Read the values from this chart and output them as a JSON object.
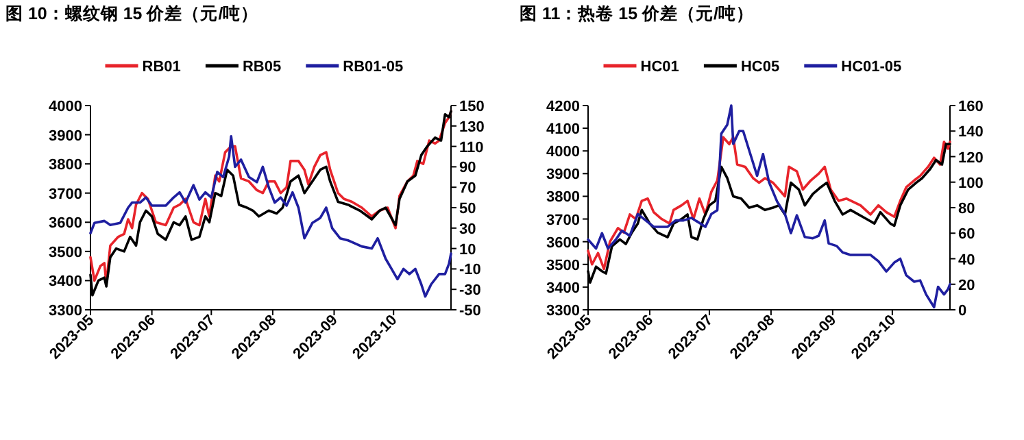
{
  "chart_data": [
    {
      "type": "line",
      "title": "图 10：螺纹钢 15 价差（元/吨）",
      "legend": "top",
      "grid": false,
      "xlim": [
        "2023-05-01",
        "2023-10-30"
      ],
      "xticks": [
        "2023-05",
        "2023-06",
        "2023-07",
        "2023-08",
        "2023-09",
        "2023-10"
      ],
      "ylim": [
        3300,
        4000
      ],
      "yticks": [
        3300,
        3400,
        3500,
        3600,
        3700,
        3800,
        3900,
        4000
      ],
      "y2lim": [
        -50,
        150
      ],
      "y2ticks": [
        -50,
        -30,
        -10,
        10,
        30,
        50,
        70,
        90,
        110,
        130,
        150
      ],
      "series": [
        {
          "name": "RB01",
          "color": "#e8242b",
          "x": [
            "2023-05-01",
            "2023-05-03",
            "2023-05-06",
            "2023-05-08",
            "2023-05-09",
            "2023-05-11",
            "2023-05-15",
            "2023-05-18",
            "2023-05-20",
            "2023-05-22",
            "2023-05-24",
            "2023-05-27",
            "2023-05-30",
            "2023-06-03",
            "2023-06-08",
            "2023-06-12",
            "2023-06-15",
            "2023-06-18",
            "2023-06-22",
            "2023-06-25",
            "2023-06-28",
            "2023-06-30",
            "2023-07-03",
            "2023-07-05",
            "2023-07-08",
            "2023-07-11",
            "2023-07-13",
            "2023-07-16",
            "2023-07-20",
            "2023-07-24",
            "2023-07-27",
            "2023-07-30",
            "2023-08-02",
            "2023-08-05",
            "2023-08-08",
            "2023-08-10",
            "2023-08-14",
            "2023-08-17",
            "2023-08-19",
            "2023-08-22",
            "2023-08-25",
            "2023-08-28",
            "2023-08-30",
            "2023-09-03",
            "2023-09-06",
            "2023-09-10",
            "2023-09-15",
            "2023-09-20",
            "2023-09-24",
            "2023-09-28",
            "2023-10-02",
            "2023-10-04",
            "2023-10-08",
            "2023-10-11",
            "2023-10-13",
            "2023-10-16",
            "2023-10-19",
            "2023-10-22",
            "2023-10-24",
            "2023-10-27",
            "2023-10-29",
            "2023-10-30"
          ],
          "values": [
            3480,
            3400,
            3450,
            3460,
            3390,
            3520,
            3550,
            3560,
            3610,
            3580,
            3660,
            3700,
            3680,
            3600,
            3590,
            3650,
            3660,
            3680,
            3600,
            3590,
            3680,
            3620,
            3760,
            3740,
            3840,
            3860,
            3860,
            3750,
            3740,
            3710,
            3700,
            3740,
            3740,
            3700,
            3720,
            3810,
            3810,
            3780,
            3730,
            3790,
            3830,
            3840,
            3780,
            3700,
            3680,
            3670,
            3650,
            3620,
            3640,
            3650,
            3580,
            3690,
            3740,
            3760,
            3810,
            3800,
            3880,
            3870,
            3880,
            3940,
            3960,
            3980
          ]
        },
        {
          "name": "RB05",
          "color": "#000000",
          "x": [
            "2023-05-01",
            "2023-05-02",
            "2023-05-05",
            "2023-05-08",
            "2023-05-09",
            "2023-05-11",
            "2023-05-14",
            "2023-05-18",
            "2023-05-21",
            "2023-05-24",
            "2023-05-26",
            "2023-05-29",
            "2023-06-01",
            "2023-06-04",
            "2023-06-08",
            "2023-06-12",
            "2023-06-15",
            "2023-06-18",
            "2023-06-21",
            "2023-06-25",
            "2023-06-28",
            "2023-06-30",
            "2023-07-03",
            "2023-07-06",
            "2023-07-09",
            "2023-07-12",
            "2023-07-15",
            "2023-07-19",
            "2023-07-22",
            "2023-07-25",
            "2023-07-30",
            "2023-08-03",
            "2023-08-06",
            "2023-08-10",
            "2023-08-14",
            "2023-08-17",
            "2023-08-21",
            "2023-08-25",
            "2023-08-28",
            "2023-08-30",
            "2023-09-03",
            "2023-09-08",
            "2023-09-14",
            "2023-09-20",
            "2023-09-24",
            "2023-09-27",
            "2023-10-02",
            "2023-10-04",
            "2023-10-08",
            "2023-10-12",
            "2023-10-15",
            "2023-10-18",
            "2023-10-22",
            "2023-10-25",
            "2023-10-27",
            "2023-10-29",
            "2023-10-30"
          ],
          "values": [
            3420,
            3350,
            3400,
            3410,
            3380,
            3480,
            3510,
            3500,
            3550,
            3520,
            3600,
            3640,
            3620,
            3560,
            3540,
            3600,
            3590,
            3620,
            3540,
            3550,
            3620,
            3600,
            3700,
            3690,
            3780,
            3760,
            3660,
            3650,
            3640,
            3620,
            3640,
            3630,
            3650,
            3740,
            3760,
            3700,
            3740,
            3780,
            3790,
            3740,
            3670,
            3660,
            3640,
            3610,
            3640,
            3650,
            3590,
            3680,
            3740,
            3760,
            3830,
            3860,
            3890,
            3880,
            3970,
            3960,
            3980
          ]
        },
        {
          "name": "RB01-05",
          "color": "#1f1fa0",
          "axis": "y2",
          "x": [
            "2023-05-01",
            "2023-05-03",
            "2023-05-08",
            "2023-05-11",
            "2023-05-16",
            "2023-05-20",
            "2023-05-22",
            "2023-05-26",
            "2023-05-29",
            "2023-06-01",
            "2023-06-08",
            "2023-06-12",
            "2023-06-15",
            "2023-06-18",
            "2023-06-22",
            "2023-06-25",
            "2023-06-28",
            "2023-07-01",
            "2023-07-04",
            "2023-07-07",
            "2023-07-10",
            "2023-07-11",
            "2023-07-13",
            "2023-07-16",
            "2023-07-20",
            "2023-07-24",
            "2023-07-27",
            "2023-07-30",
            "2023-08-02",
            "2023-08-05",
            "2023-08-08",
            "2023-08-11",
            "2023-08-14",
            "2023-08-17",
            "2023-08-21",
            "2023-08-25",
            "2023-08-28",
            "2023-08-31",
            "2023-09-04",
            "2023-09-08",
            "2023-09-15",
            "2023-09-20",
            "2023-09-23",
            "2023-09-27",
            "2023-09-30",
            "2023-10-03",
            "2023-10-06",
            "2023-10-09",
            "2023-10-12",
            "2023-10-15",
            "2023-10-17",
            "2023-10-20",
            "2023-10-24",
            "2023-10-27",
            "2023-10-29",
            "2023-10-30"
          ],
          "values": [
            25,
            35,
            37,
            33,
            35,
            50,
            55,
            55,
            60,
            52,
            52,
            60,
            65,
            55,
            72,
            58,
            65,
            60,
            85,
            80,
            100,
            120,
            90,
            97,
            80,
            75,
            90,
            70,
            55,
            60,
            52,
            65,
            50,
            20,
            35,
            40,
            50,
            30,
            20,
            18,
            12,
            10,
            20,
            0,
            -10,
            -20,
            -10,
            -15,
            -10,
            -25,
            -37,
            -25,
            -15,
            -15,
            -5,
            5
          ]
        }
      ]
    },
    {
      "type": "line",
      "title": "图 11：热卷 15 价差（元/吨）",
      "legend": "top",
      "grid": false,
      "xlim": [
        "2023-05-01",
        "2023-10-30"
      ],
      "xticks": [
        "2023-05",
        "2023-06",
        "2023-07",
        "2023-08",
        "2023-09",
        "2023-10"
      ],
      "ylim": [
        3300,
        4200
      ],
      "yticks": [
        3300,
        3400,
        3500,
        3600,
        3700,
        3800,
        3900,
        4000,
        4100,
        4200
      ],
      "y2lim": [
        0,
        160
      ],
      "y2ticks": [
        0,
        20,
        40,
        60,
        80,
        100,
        120,
        140,
        160
      ],
      "series": [
        {
          "name": "HC01",
          "color": "#e8242b",
          "x": [
            "2023-05-01",
            "2023-05-03",
            "2023-05-06",
            "2023-05-09",
            "2023-05-12",
            "2023-05-16",
            "2023-05-19",
            "2023-05-22",
            "2023-05-25",
            "2023-05-28",
            "2023-05-31",
            "2023-06-03",
            "2023-06-07",
            "2023-06-11",
            "2023-06-13",
            "2023-06-17",
            "2023-06-20",
            "2023-06-23",
            "2023-06-26",
            "2023-06-29",
            "2023-07-02",
            "2023-07-05",
            "2023-07-08",
            "2023-07-11",
            "2023-07-13",
            "2023-07-15",
            "2023-07-19",
            "2023-07-23",
            "2023-07-26",
            "2023-07-29",
            "2023-08-02",
            "2023-08-05",
            "2023-08-08",
            "2023-08-10",
            "2023-08-14",
            "2023-08-17",
            "2023-08-21",
            "2023-08-25",
            "2023-08-28",
            "2023-08-31",
            "2023-09-04",
            "2023-09-08",
            "2023-09-15",
            "2023-09-20",
            "2023-09-24",
            "2023-09-28",
            "2023-10-02",
            "2023-10-05",
            "2023-10-08",
            "2023-10-12",
            "2023-10-15",
            "2023-10-19",
            "2023-10-22",
            "2023-10-25",
            "2023-10-27",
            "2023-10-29",
            "2023-10-30"
          ],
          "values": [
            3560,
            3500,
            3550,
            3480,
            3600,
            3660,
            3640,
            3720,
            3700,
            3780,
            3790,
            3730,
            3700,
            3680,
            3740,
            3760,
            3780,
            3700,
            3790,
            3720,
            3820,
            3870,
            4060,
            4030,
            4060,
            3940,
            3930,
            3880,
            3860,
            3880,
            3860,
            3830,
            3800,
            3930,
            3910,
            3830,
            3870,
            3900,
            3930,
            3830,
            3780,
            3790,
            3760,
            3720,
            3760,
            3730,
            3710,
            3780,
            3840,
            3870,
            3890,
            3930,
            3970,
            3940,
            4040,
            4010,
            4040
          ]
        },
        {
          "name": "HC05",
          "color": "#000000",
          "x": [
            "2023-05-01",
            "2023-05-02",
            "2023-05-05",
            "2023-05-08",
            "2023-05-10",
            "2023-05-13",
            "2023-05-17",
            "2023-05-20",
            "2023-05-23",
            "2023-05-26",
            "2023-05-28",
            "2023-06-01",
            "2023-06-05",
            "2023-06-10",
            "2023-06-13",
            "2023-06-17",
            "2023-06-20",
            "2023-06-22",
            "2023-06-25",
            "2023-06-28",
            "2023-07-01",
            "2023-07-04",
            "2023-07-07",
            "2023-07-10",
            "2023-07-13",
            "2023-07-17",
            "2023-07-21",
            "2023-07-25",
            "2023-07-29",
            "2023-08-02",
            "2023-08-05",
            "2023-08-08",
            "2023-08-11",
            "2023-08-15",
            "2023-08-18",
            "2023-08-22",
            "2023-08-26",
            "2023-08-29",
            "2023-09-02",
            "2023-09-06",
            "2023-09-10",
            "2023-09-18",
            "2023-09-22",
            "2023-09-25",
            "2023-09-30",
            "2023-10-02",
            "2023-10-05",
            "2023-10-09",
            "2023-10-13",
            "2023-10-16",
            "2023-10-20",
            "2023-10-23",
            "2023-10-26",
            "2023-10-28",
            "2023-10-30"
          ],
          "values": [
            3470,
            3420,
            3490,
            3470,
            3460,
            3580,
            3610,
            3590,
            3640,
            3680,
            3740,
            3680,
            3640,
            3620,
            3680,
            3700,
            3720,
            3620,
            3610,
            3700,
            3760,
            3780,
            3930,
            3880,
            3800,
            3790,
            3750,
            3760,
            3740,
            3750,
            3760,
            3720,
            3860,
            3830,
            3760,
            3810,
            3840,
            3860,
            3780,
            3720,
            3740,
            3700,
            3680,
            3730,
            3680,
            3670,
            3760,
            3830,
            3860,
            3880,
            3920,
            3960,
            3940,
            4030,
            4030
          ]
        },
        {
          "name": "HC01-05",
          "color": "#1f1fa0",
          "axis": "y2",
          "x": [
            "2023-05-01",
            "2023-05-05",
            "2023-05-08",
            "2023-05-11",
            "2023-05-15",
            "2023-05-18",
            "2023-05-22",
            "2023-05-26",
            "2023-05-30",
            "2023-06-03",
            "2023-06-10",
            "2023-06-14",
            "2023-06-18",
            "2023-06-22",
            "2023-06-26",
            "2023-06-29",
            "2023-07-02",
            "2023-07-05",
            "2023-07-07",
            "2023-07-10",
            "2023-07-12",
            "2023-07-13",
            "2023-07-16",
            "2023-07-18",
            "2023-07-22",
            "2023-07-25",
            "2023-07-28",
            "2023-07-31",
            "2023-08-04",
            "2023-08-08",
            "2023-08-11",
            "2023-08-14",
            "2023-08-18",
            "2023-08-22",
            "2023-08-25",
            "2023-08-28",
            "2023-08-30",
            "2023-09-03",
            "2023-09-06",
            "2023-09-10",
            "2023-09-20",
            "2023-09-24",
            "2023-09-28",
            "2023-10-02",
            "2023-10-05",
            "2023-10-08",
            "2023-10-12",
            "2023-10-15",
            "2023-10-18",
            "2023-10-22",
            "2023-10-24",
            "2023-10-27",
            "2023-10-29",
            "2023-10-30"
          ],
          "values": [
            55,
            48,
            60,
            48,
            55,
            62,
            58,
            75,
            70,
            65,
            65,
            70,
            70,
            72,
            68,
            65,
            75,
            78,
            138,
            145,
            160,
            130,
            140,
            140,
            120,
            105,
            122,
            100,
            85,
            75,
            60,
            74,
            57,
            56,
            58,
            70,
            52,
            50,
            45,
            43,
            43,
            38,
            30,
            37,
            40,
            27,
            22,
            23,
            12,
            2,
            18,
            12,
            16,
            20
          ]
        }
      ]
    }
  ]
}
